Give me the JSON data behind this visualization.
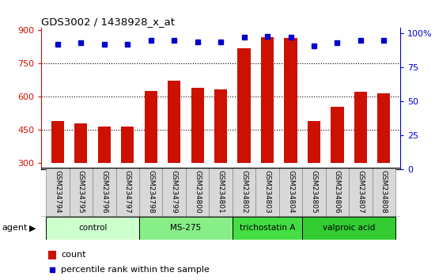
{
  "title": "GDS3002 / 1438928_x_at",
  "samples": [
    "GSM234794",
    "GSM234795",
    "GSM234796",
    "GSM234797",
    "GSM234798",
    "GSM234799",
    "GSM234800",
    "GSM234801",
    "GSM234802",
    "GSM234803",
    "GSM234804",
    "GSM234805",
    "GSM234806",
    "GSM234807",
    "GSM234808"
  ],
  "counts": [
    490,
    480,
    465,
    465,
    625,
    670,
    638,
    632,
    820,
    870,
    865,
    490,
    555,
    620,
    615
  ],
  "percentiles": [
    92,
    93,
    92,
    92,
    95,
    95,
    94,
    94,
    97,
    98,
    97,
    91,
    93,
    95,
    95
  ],
  "groups": [
    {
      "name": "control",
      "indices": [
        0,
        1,
        2,
        3
      ],
      "color": "#ccffcc"
    },
    {
      "name": "MS-275",
      "indices": [
        4,
        5,
        6,
        7
      ],
      "color": "#88ee88"
    },
    {
      "name": "trichostatin A",
      "indices": [
        8,
        9,
        10
      ],
      "color": "#44dd44"
    },
    {
      "name": "valproic acid",
      "indices": [
        11,
        12,
        13,
        14
      ],
      "color": "#33cc33"
    }
  ],
  "bar_color": "#cc1100",
  "dot_color": "#0000cc",
  "ylim_left": [
    270,
    910
  ],
  "ylim_right": [
    0,
    104
  ],
  "yticks_left": [
    300,
    450,
    600,
    750,
    900
  ],
  "yticks_right": [
    0,
    25,
    50,
    75,
    100
  ],
  "bar_width": 0.55,
  "background_color": "#ffffff",
  "tick_color_left": "#cc1100",
  "tick_color_right": "#0000cc",
  "agent_label": "agent",
  "legend_count_label": "count",
  "legend_percentile_label": "percentile rank within the sample",
  "grid_vals": [
    450,
    600,
    750
  ],
  "label_bg": "#d8d8d8"
}
